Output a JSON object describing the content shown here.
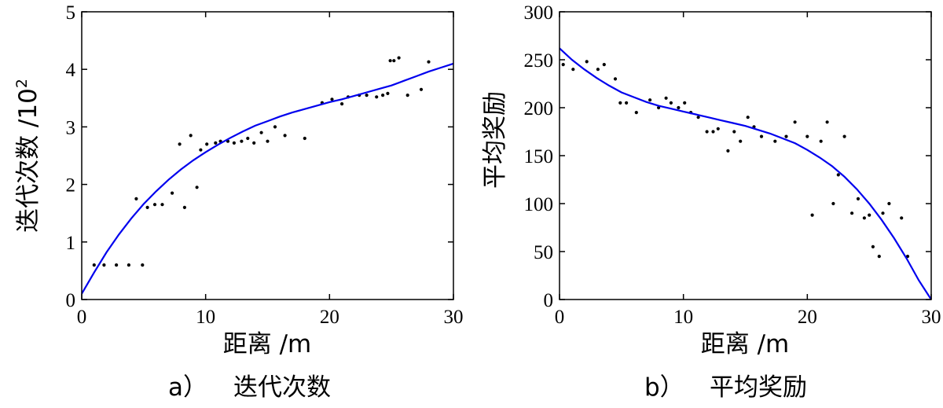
{
  "chart_data": [
    {
      "type": "scatter",
      "caption_prefix": "a）",
      "caption": "迭代次数",
      "xlabel": "距离 /m",
      "ylabel": "迭代次数 /10",
      "ylabel_exponent": "2",
      "xlim": [
        0,
        30
      ],
      "ylim": [
        0,
        5
      ],
      "xticks": [
        0,
        10,
        20,
        30
      ],
      "yticks": [
        0,
        1,
        2,
        3,
        4,
        5
      ],
      "series": [
        {
          "kind": "points",
          "color": "#000000",
          "x": [
            1.0,
            1.8,
            2.8,
            3.8,
            4.4,
            4.9,
            5.3,
            5.9,
            6.5,
            7.3,
            7.9,
            8.3,
            8.8,
            9.3,
            9.6,
            10.1,
            10.8,
            11.2,
            11.8,
            12.3,
            12.9,
            13.4,
            13.9,
            14.5,
            15.0,
            15.6,
            16.4,
            18.0,
            19.4,
            20.2,
            21.0,
            21.5,
            22.4,
            23.0,
            23.8,
            24.3,
            24.7,
            24.9,
            25.2,
            25.6,
            26.3,
            27.4,
            28.0
          ],
          "y": [
            0.6,
            0.6,
            0.6,
            0.6,
            1.75,
            0.6,
            1.6,
            1.65,
            1.65,
            1.85,
            2.7,
            1.6,
            2.85,
            1.95,
            2.6,
            2.7,
            2.72,
            2.75,
            2.75,
            2.72,
            2.75,
            2.8,
            2.72,
            2.9,
            2.75,
            3.0,
            2.85,
            2.8,
            3.42,
            3.48,
            3.4,
            3.52,
            3.55,
            3.55,
            3.52,
            3.55,
            3.58,
            4.15,
            4.15,
            4.2,
            3.55,
            3.65,
            4.13
          ]
        },
        {
          "kind": "fit",
          "color": "#0000ee",
          "x": [
            0,
            1,
            2,
            3,
            4,
            5,
            6,
            7,
            8,
            9,
            10,
            11,
            12,
            13,
            14,
            15,
            16,
            17,
            18,
            19,
            20,
            21,
            22,
            23,
            24,
            25,
            26,
            27,
            28,
            29,
            30
          ],
          "y": [
            0.1,
            0.47,
            0.82,
            1.13,
            1.41,
            1.66,
            1.88,
            2.08,
            2.26,
            2.42,
            2.56,
            2.69,
            2.81,
            2.92,
            3.02,
            3.1,
            3.18,
            3.25,
            3.31,
            3.37,
            3.43,
            3.48,
            3.54,
            3.6,
            3.66,
            3.72,
            3.8,
            3.88,
            3.96,
            4.03,
            4.1
          ]
        }
      ]
    },
    {
      "type": "scatter",
      "caption_prefix": "b）",
      "caption": "平均奖励",
      "xlabel": "距离 /m",
      "ylabel": "平均奖励",
      "xlim": [
        0,
        30
      ],
      "ylim": [
        0,
        300
      ],
      "xticks": [
        0,
        10,
        20,
        30
      ],
      "yticks": [
        0,
        50,
        100,
        150,
        200,
        250,
        300
      ],
      "series": [
        {
          "kind": "points",
          "color": "#000000",
          "x": [
            0.3,
            1.1,
            2.2,
            3.1,
            3.6,
            4.5,
            4.9,
            5.4,
            6.2,
            7.3,
            8.0,
            8.6,
            9.0,
            9.6,
            10.1,
            10.6,
            11.2,
            11.9,
            12.4,
            12.8,
            13.6,
            14.1,
            14.6,
            15.2,
            15.7,
            16.3,
            17.4,
            18.3,
            19.0,
            20.0,
            20.4,
            21.1,
            21.6,
            22.1,
            22.5,
            23.0,
            23.6,
            24.1,
            24.6,
            25.0,
            25.3,
            25.8,
            26.1,
            26.6,
            27.6,
            28.1
          ],
          "y": [
            245,
            240,
            248,
            240,
            245,
            230,
            205,
            205,
            195,
            208,
            200,
            210,
            205,
            200,
            205,
            195,
            190,
            175,
            175,
            178,
            155,
            175,
            165,
            190,
            180,
            170,
            165,
            170,
            185,
            170,
            88,
            165,
            185,
            100,
            130,
            170,
            90,
            105,
            85,
            88,
            55,
            45,
            90,
            100,
            85,
            45
          ]
        },
        {
          "kind": "fit",
          "color": "#0000ee",
          "x": [
            0,
            1,
            2,
            3,
            4,
            5,
            6,
            7,
            8,
            9,
            10,
            11,
            12,
            13,
            14,
            15,
            16,
            17,
            18,
            19,
            20,
            21,
            22,
            23,
            24,
            25,
            26,
            27,
            28,
            29,
            30
          ],
          "y": [
            262,
            250,
            240,
            231,
            223,
            216,
            211,
            206,
            202,
            199,
            196,
            193,
            190,
            187,
            184,
            181,
            177,
            173,
            168,
            163,
            156,
            148,
            139,
            128,
            115,
            100,
            83,
            64,
            43,
            20,
            0
          ]
        }
      ]
    }
  ]
}
